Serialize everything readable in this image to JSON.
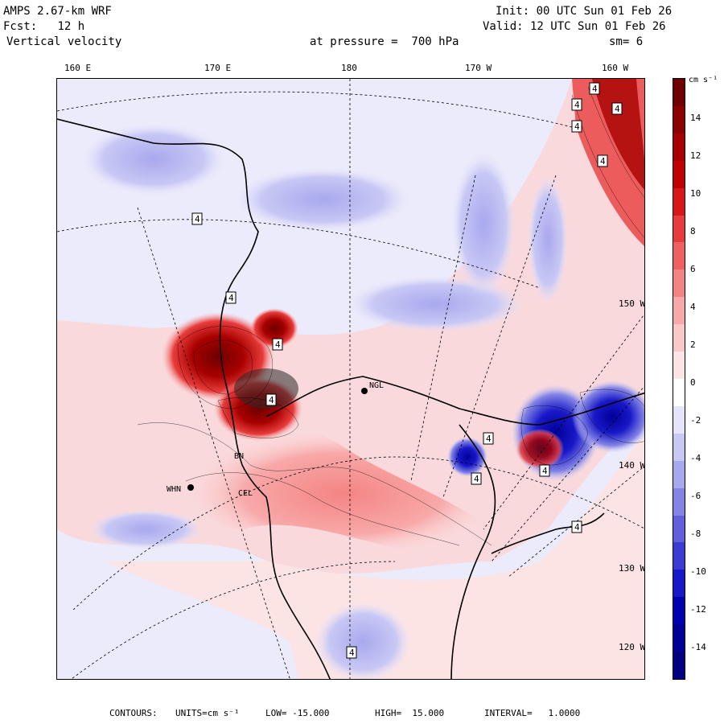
{
  "header": {
    "model": "AMPS 2.67-km WRF",
    "fcst_label": "Fcst:",
    "fcst_value": "12 h",
    "field": "Vertical velocity",
    "init": "Init: 00 UTC Sun 01 Feb 26",
    "valid": "Valid: 12 UTC Sun 01 Feb 26",
    "pressure": "at pressure =  700 hPa",
    "smooth": "sm= 6"
  },
  "map": {
    "top_lon_labels": [
      "160 E",
      "170 E",
      "180",
      "170 W",
      "160 W"
    ],
    "right_lon_labels": [
      "150 W",
      "140 W",
      "130 W",
      "120 W"
    ],
    "stations": [
      "NGL",
      "WHN",
      "BN",
      "CEL"
    ],
    "extreme_markers": [
      "4",
      "4",
      "4",
      "4",
      "4",
      "4",
      "4",
      "4",
      "4",
      "4",
      "4",
      "4",
      "4",
      "4"
    ]
  },
  "colorbar": {
    "units": "cm s⁻¹",
    "ticks": [
      "14",
      "12",
      "10",
      "8",
      "6",
      "4",
      "2",
      "0",
      "-2",
      "-4",
      "-6",
      "-8",
      "-10",
      "-12",
      "-14"
    ],
    "colors": [
      "#6e0000",
      "#8c0000",
      "#a80000",
      "#c00000",
      "#d81818",
      "#e83c3c",
      "#f06060",
      "#f48484",
      "#f8a8a8",
      "#fbc8c8",
      "#fde4e4",
      "#ffffff",
      "#e4e4fb",
      "#c8c8f5",
      "#a8a8ee",
      "#8484e6",
      "#6060dc",
      "#3c3cd2",
      "#1818c8",
      "#0000b0",
      "#000098",
      "#000080"
    ]
  },
  "footer": {
    "contours_label": "CONTOURS:",
    "units": "UNITS=cm s⁻¹",
    "low": "LOW= -15.000",
    "high": "HIGH=  15.000",
    "interval": "INTERVAL=   1.0000"
  }
}
